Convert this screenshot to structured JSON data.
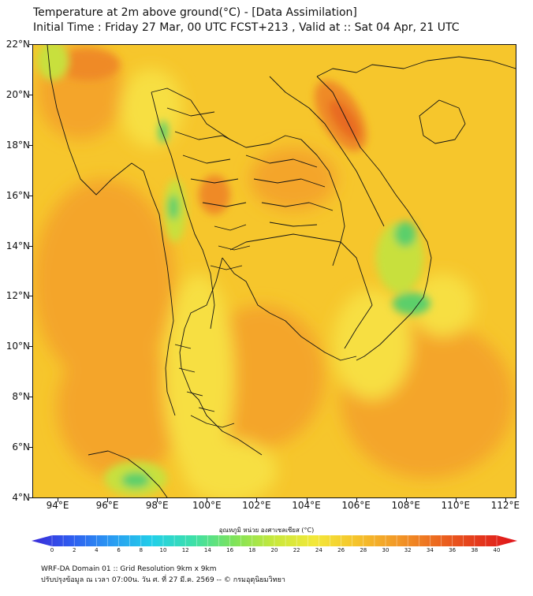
{
  "title_line1": "Temperature at 2m above ground(°C) - [Data Assimilation]",
  "title_line2": "Initial Time : Friday 27 Mar, 00 UTC FCST+213 , Valid at :: Sat 04 Apr, 21 UTC",
  "map": {
    "lat_labels": [
      "22°N",
      "20°N",
      "18°N",
      "16°N",
      "14°N",
      "12°N",
      "10°N",
      "8°N",
      "6°N",
      "4°N"
    ],
    "lon_labels": [
      "94°E",
      "96°E",
      "98°E",
      "100°E",
      "102°E",
      "104°E",
      "106°E",
      "108°E",
      "110°E",
      "112°E"
    ],
    "colors": {
      "base": "#f6c62c",
      "warm": "#f4a52c",
      "hot": "#ef8a26",
      "hottest": "#e86a20",
      "pale": "#f7df42",
      "cool": "#c8e03c",
      "green": "#5ccf6a",
      "border": "#141414"
    }
  },
  "colorbar": {
    "label": "อุณหภูมิ หน่วย องศาเซลเซียส (°C)",
    "ticks": [
      "0",
      "2",
      "4",
      "6",
      "8",
      "10",
      "12",
      "14",
      "16",
      "18",
      "20",
      "22",
      "24",
      "26",
      "28",
      "30",
      "32",
      "34",
      "36",
      "38",
      "40"
    ],
    "colors": [
      "#3a2bd8",
      "#2f5ef0",
      "#2a9cf2",
      "#22d0e8",
      "#3ee0a8",
      "#7ee35a",
      "#c8e83c",
      "#f3e83a",
      "#f5c42c",
      "#f29a28",
      "#ec6a20",
      "#e43a1c",
      "#e0131b"
    ]
  },
  "footer_line1": "WRF-DA Domain 01 :: Grid Resolution 9km x 9km",
  "footer_line2": "ปรับปรุงข้อมูล ณ เวลา 07:00น. วัน ศ. ที่ 27 มี.ค. 2569 -- © กรมอุตุนิยมวิทยา"
}
